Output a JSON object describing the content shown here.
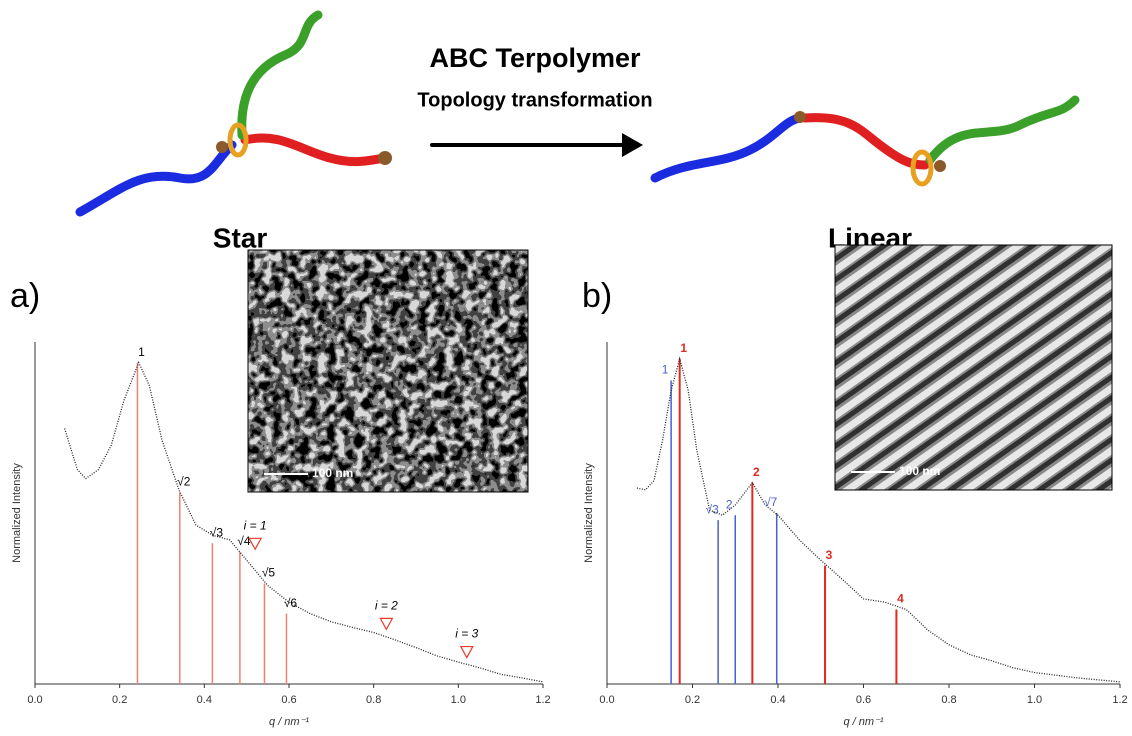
{
  "figure": {
    "title": "ABC Terpolymer",
    "subtitle": "Topology transformation",
    "left_label": "Star",
    "right_label": "Linear"
  },
  "chart_data": [
    {
      "type": "line",
      "panel": "a)",
      "scale_bar": "100 nm",
      "xlabel": "q / nm⁻¹",
      "ylabel": "Normalized Intensity",
      "log_y": true,
      "xlim": [
        0,
        1.2
      ],
      "ylim": [
        0.2,
        500
      ],
      "xticks": [
        {
          "value": 0,
          "label": "0.0"
        },
        0.2,
        0.4,
        0.6,
        0.8,
        {
          "value": 1,
          "label": "1.0"
        },
        1.2
      ],
      "x": [
        0.07,
        0.1,
        0.12,
        0.15,
        0.18,
        0.21,
        0.245,
        0.27,
        0.3,
        0.34,
        0.38,
        0.42,
        0.46,
        0.5,
        0.55,
        0.6,
        0.65,
        0.7,
        0.75,
        0.8,
        0.85,
        0.9,
        0.95,
        1.0,
        1.05,
        1.1,
        1.15,
        1.2
      ],
      "series": [
        {
          "color": "#222222",
          "values": [
            69,
            27,
            22,
            27,
            47,
            131,
            312,
            185,
            53,
            17,
            7.6,
            6,
            5.4,
            3.4,
            1.9,
            1.3,
            1.0,
            0.83,
            0.73,
            0.65,
            0.55,
            0.46,
            0.38,
            0.33,
            0.29,
            0.25,
            0.23,
            0.21
          ]
        }
      ],
      "peak_sets": [
        {
          "color": "#f08070",
          "positions": [
            0.242,
            0.342,
            0.419,
            0.484,
            0.542,
            0.594
          ],
          "heights": [
            312,
            16,
            5,
            4.1,
            2,
            1
          ],
          "labels": [
            "1",
            "√2",
            "√3",
            "√4",
            "√5",
            "√6"
          ]
        }
      ],
      "markers": {
        "color": "#e83a2a",
        "positions": [
          0.52,
          0.83,
          1.02
        ],
        "values": [
          5,
          0.8,
          0.42
        ],
        "labels": [
          "i = 1",
          "i = 2",
          "i = 3"
        ]
      }
    },
    {
      "type": "line",
      "panel": "b)",
      "scale_bar": "100 nm",
      "xlabel": "q / nm⁻¹",
      "ylabel": "Normalized Intensity",
      "log_y": true,
      "xlim": [
        0,
        1.2
      ],
      "ylim": [
        0.2,
        500
      ],
      "xticks": [
        {
          "value": 0,
          "label": "0.0"
        },
        0.2,
        0.4,
        0.6,
        0.8,
        {
          "value": 1,
          "label": "1.0"
        },
        1.2
      ],
      "x": [
        0.07,
        0.09,
        0.11,
        0.13,
        0.15,
        0.17,
        0.19,
        0.21,
        0.24,
        0.27,
        0.3,
        0.34,
        0.37,
        0.4,
        0.45,
        0.5,
        0.55,
        0.6,
        0.65,
        0.7,
        0.75,
        0.8,
        0.85,
        0.9,
        0.95,
        1.0,
        1.1,
        1.2
      ],
      "series": [
        {
          "color": "#222222",
          "values": [
            17.7,
            17,
            21,
            53,
            165,
            340,
            165,
            42,
            10.7,
            9.5,
            12,
            20,
            12,
            9.5,
            5.4,
            3.4,
            2.2,
            1.4,
            1.3,
            1.1,
            0.69,
            0.49,
            0.39,
            0.34,
            0.29,
            0.26,
            0.23,
            0.21
          ]
        }
      ],
      "peak_sets": [
        {
          "color": "#4a5fd0",
          "positions": [
            0.15,
            0.26,
            0.3,
            0.397
          ],
          "heights": [
            207,
            8.5,
            9.5,
            10
          ],
          "labels": [
            "1",
            "√3",
            "2",
            "√7"
          ]
        },
        {
          "color": "#e02a20",
          "positions": [
            0.17,
            0.34,
            0.51,
            0.677
          ],
          "heights": [
            340,
            20,
            3,
            1.1
          ],
          "labels": [
            "1",
            "2",
            "3",
            "4"
          ]
        }
      ]
    }
  ]
}
